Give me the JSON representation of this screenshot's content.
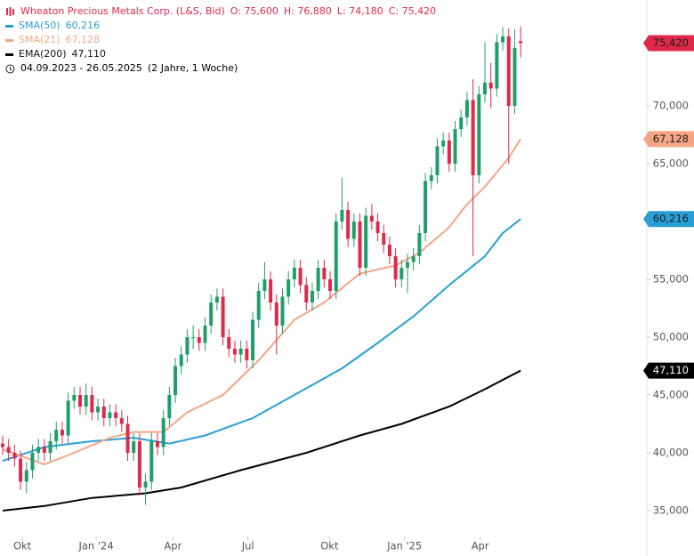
{
  "chart_data": {
    "type": "candlestick",
    "title": "Wheaton Precious Metals Corp. (L&S, Bid)",
    "ohlc_summary": [
      "O: 75,600",
      "H: 76,880",
      "L: 74,180",
      "C: 75,420"
    ],
    "date_range": "04.09.2023 - 26.05.2025",
    "period": "(2 Jahre, 1 Woche)",
    "up_color": "#1f9e6a",
    "down_color": "#e0294a",
    "title_color": "#e0294a",
    "last_value_label": "75,420",
    "open": [
      40800,
      40500,
      40000,
      39500,
      37500,
      38500,
      40000,
      40500,
      40000,
      41000,
      42000,
      41500,
      44500,
      45000,
      44000,
      45000,
      43500,
      44000,
      43000,
      43500,
      43000,
      42500,
      40000,
      41000,
      37000,
      37500,
      41000,
      40500,
      43000,
      45000,
      47500,
      48500,
      50000,
      50000,
      49500,
      51000,
      53000,
      53500,
      50000,
      49000,
      48500,
      49000,
      48000,
      51500,
      54000,
      55000,
      53000,
      51000,
      53500,
      55000,
      56000,
      54500,
      53000,
      54000,
      56000,
      55000,
      54000,
      60000,
      61000,
      58500,
      60000,
      56000,
      60500,
      60000,
      59000,
      58000,
      57000,
      55000,
      56000,
      56500,
      57000,
      59000,
      63500,
      64000,
      66500,
      67000,
      65000,
      68000,
      69000,
      70500,
      64000,
      71000,
      72000,
      71500,
      75500,
      76000,
      70000,
      75600
    ],
    "high": [
      41500,
      41200,
      40700,
      40200,
      39200,
      40700,
      41200,
      41200,
      41700,
      42700,
      42700,
      45200,
      45700,
      45700,
      46000,
      45700,
      44700,
      44700,
      44200,
      44200,
      43700,
      43200,
      41700,
      41700,
      38200,
      41700,
      41700,
      43700,
      45700,
      48200,
      49200,
      50700,
      51000,
      50700,
      51700,
      53700,
      54200,
      54200,
      50700,
      49700,
      49700,
      49700,
      52200,
      54700,
      56500,
      55700,
      53700,
      54200,
      55700,
      56700,
      56700,
      55200,
      54700,
      56700,
      56700,
      55700,
      60700,
      63800,
      61700,
      60700,
      60700,
      61200,
      61500,
      60700,
      59700,
      58700,
      57700,
      56700,
      57200,
      57700,
      59700,
      64200,
      64700,
      67200,
      67700,
      67700,
      68700,
      69700,
      71200,
      72300,
      71700,
      75500,
      73700,
      76200,
      76800,
      76700,
      76600,
      76880
    ],
    "low": [
      39800,
      39300,
      38800,
      36800,
      36500,
      37800,
      39300,
      39300,
      39300,
      40300,
      40800,
      40800,
      43800,
      43300,
      43300,
      42800,
      42800,
      42300,
      42300,
      42300,
      41800,
      39300,
      39300,
      36300,
      35500,
      36800,
      39800,
      39800,
      42300,
      44300,
      46800,
      47800,
      49000,
      48800,
      48800,
      50300,
      52300,
      49300,
      48300,
      47800,
      47800,
      47300,
      47300,
      50800,
      53300,
      52300,
      48500,
      50300,
      52800,
      54300,
      53800,
      52300,
      52300,
      53300,
      54300,
      53300,
      53300,
      59300,
      57800,
      57800,
      55300,
      55300,
      59300,
      58300,
      57300,
      56300,
      54300,
      54300,
      53800,
      55800,
      56300,
      58300,
      62800,
      63300,
      65800,
      64300,
      64300,
      67300,
      68300,
      57000,
      63300,
      70300,
      69800,
      70800,
      74800,
      65000,
      69300,
      74180
    ],
    "close": [
      40500,
      40000,
      39500,
      37500,
      38500,
      40000,
      40500,
      40000,
      41000,
      42000,
      41500,
      44500,
      45000,
      44000,
      45000,
      43500,
      44000,
      43000,
      43500,
      43000,
      42500,
      40000,
      41000,
      37000,
      37500,
      41000,
      40500,
      43000,
      45000,
      47500,
      48500,
      50000,
      50000,
      49500,
      51000,
      53000,
      53500,
      50000,
      49000,
      48500,
      49000,
      48000,
      51500,
      54000,
      55000,
      53000,
      51000,
      53500,
      55000,
      56000,
      54500,
      53000,
      54000,
      56000,
      55000,
      54000,
      60000,
      61000,
      58500,
      60000,
      56000,
      60500,
      60000,
      59000,
      58000,
      57000,
      55000,
      56000,
      56500,
      57000,
      59000,
      63500,
      64000,
      66500,
      67000,
      65000,
      68000,
      69000,
      70500,
      64000,
      71000,
      72000,
      71500,
      75500,
      76000,
      70000,
      75000,
      75420
    ],
    "series": [
      {
        "name": "SMA(50)",
        "color": "#2a9fd6",
        "label_text_color": "#1a1a1a",
        "last_value_label": "60,216",
        "x": [
          0,
          7,
          15,
          22,
          28,
          34,
          42,
          49,
          57,
          63,
          69,
          75,
          81,
          84,
          87
        ],
        "values": [
          39300,
          40500,
          41000,
          41300,
          40800,
          41500,
          43000,
          45000,
          47300,
          49500,
          51800,
          54500,
          57000,
          59000,
          60216
        ]
      },
      {
        "name": "SMA(21)",
        "color": "#f5a585",
        "label_text_color": "#1a1a1a",
        "last_value_label": "67,128",
        "x": [
          0,
          7,
          12,
          18,
          22,
          27,
          31,
          37,
          43,
          49,
          54,
          60,
          66,
          70,
          75,
          78,
          81,
          85,
          87
        ],
        "values": [
          40300,
          39000,
          40000,
          41300,
          41800,
          41800,
          43500,
          45000,
          48000,
          51500,
          53000,
          55500,
          56200,
          57300,
          59500,
          61500,
          63000,
          65500,
          67128
        ]
      },
      {
        "name": "EMA(200)",
        "color": "#000000",
        "label_text_color": "#ffffff",
        "last_value_label": "47,110",
        "x": [
          0,
          7,
          15,
          24,
          30,
          40,
          51,
          60,
          67,
          75,
          81,
          87
        ],
        "values": [
          35000,
          35400,
          36100,
          36500,
          37000,
          38500,
          40000,
          41500,
          42500,
          44000,
          45500,
          47110
        ]
      }
    ],
    "xlim": [
      -0.45,
      108.2
    ],
    "xticks": [
      {
        "value": 3.3,
        "label": "Okt"
      },
      {
        "value": 15.7,
        "label": "Jan '24"
      },
      {
        "value": 28.6,
        "label": "Apr"
      },
      {
        "value": 41.2,
        "label": "Jul"
      },
      {
        "value": 54.9,
        "label": "Okt"
      },
      {
        "value": 67.5,
        "label": "Jan '25"
      },
      {
        "value": 80.2,
        "label": "Apr"
      }
    ],
    "ylim": [
      31077,
      79154
    ],
    "yticks": [
      {
        "value": 35000,
        "label": "35,000"
      },
      {
        "value": 40000,
        "label": "40,000"
      },
      {
        "value": 45000,
        "label": "45,000"
      },
      {
        "value": 50000,
        "label": "50,000"
      },
      {
        "value": 55000,
        "label": "55,000"
      },
      {
        "value": 60000,
        "label": "60,000"
      },
      {
        "value": 65000,
        "label": "65,000"
      },
      {
        "value": 70000,
        "label": "70,000"
      }
    ],
    "grid": false
  }
}
